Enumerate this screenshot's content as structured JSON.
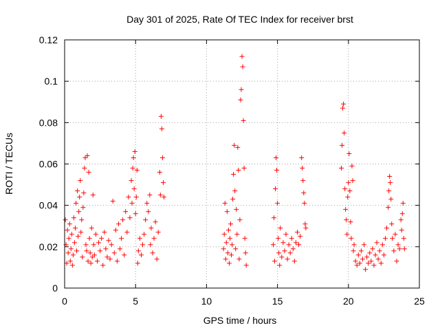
{
  "chart_data": {
    "type": "scatter",
    "title": "Day 301 of 2025, Rate Of TEC Index for receiver brst",
    "xlabel": "GPS time / hours",
    "ylabel": "ROTI / TECUs",
    "xlim": [
      0,
      25
    ],
    "ylim": [
      0,
      0.12
    ],
    "x_ticks": [
      0,
      5,
      10,
      15,
      20,
      25
    ],
    "x_tick_labels": [
      "0",
      "5",
      "10",
      "15",
      "20",
      "25"
    ],
    "y_ticks": [
      0,
      0.02,
      0.04,
      0.06,
      0.08,
      0.1,
      0.12
    ],
    "y_tick_labels": [
      "0",
      "0.02",
      "0.04",
      "0.06",
      "0.08",
      "0.1",
      "0.12"
    ],
    "grid": true,
    "marker": "+",
    "marker_color": "#ff0000",
    "series": [
      {
        "name": "ROTI",
        "points": [
          [
            0.05,
            0.033
          ],
          [
            0.1,
            0.021
          ],
          [
            0.15,
            0.012
          ],
          [
            0.2,
            0.028
          ],
          [
            0.25,
            0.017
          ],
          [
            0.3,
            0.024
          ],
          [
            0.35,
            0.031
          ],
          [
            0.4,
            0.013
          ],
          [
            0.45,
            0.019
          ],
          [
            0.5,
            0.026
          ],
          [
            0.55,
            0.011
          ],
          [
            0.6,
            0.016
          ],
          [
            0.65,
            0.034
          ],
          [
            0.7,
            0.022
          ],
          [
            0.75,
            0.029
          ],
          [
            0.8,
            0.041
          ],
          [
            0.85,
            0.018
          ],
          [
            0.9,
            0.047
          ],
          [
            0.95,
            0.025
          ],
          [
            1.0,
            0.037
          ],
          [
            1.05,
            0.044
          ],
          [
            1.1,
            0.052
          ],
          [
            1.15,
            0.027
          ],
          [
            1.2,
            0.033
          ],
          [
            1.25,
            0.015
          ],
          [
            1.3,
            0.039
          ],
          [
            1.35,
            0.046
          ],
          [
            1.4,
            0.058
          ],
          [
            1.45,
            0.063
          ],
          [
            1.5,
            0.021
          ],
          [
            1.55,
            0.018
          ],
          [
            1.6,
            0.064
          ],
          [
            1.65,
            0.013
          ],
          [
            1.7,
            0.056
          ],
          [
            1.75,
            0.024
          ],
          [
            1.8,
            0.017
          ],
          [
            1.85,
            0.012
          ],
          [
            1.9,
            0.029
          ],
          [
            1.95,
            0.015
          ],
          [
            2.0,
            0.045
          ],
          [
            2.05,
            0.021
          ],
          [
            2.1,
            0.016
          ],
          [
            2.2,
            0.026
          ],
          [
            2.3,
            0.013
          ],
          [
            2.4,
            0.022
          ],
          [
            2.5,
            0.018
          ],
          [
            2.6,
            0.024
          ],
          [
            2.7,
            0.011
          ],
          [
            2.8,
            0.027
          ],
          [
            2.9,
            0.019
          ],
          [
            3.0,
            0.015
          ],
          [
            3.1,
            0.023
          ],
          [
            3.2,
            0.014
          ],
          [
            3.3,
            0.021
          ],
          [
            3.4,
            0.042
          ],
          [
            3.5,
            0.017
          ],
          [
            3.6,
            0.028
          ],
          [
            3.7,
            0.013
          ],
          [
            3.8,
            0.031
          ],
          [
            3.9,
            0.019
          ],
          [
            4.0,
            0.024
          ],
          [
            4.1,
            0.033
          ],
          [
            4.2,
            0.016
          ],
          [
            4.3,
            0.037
          ],
          [
            4.4,
            0.027
          ],
          [
            4.5,
            0.044
          ],
          [
            4.6,
            0.034
          ],
          [
            4.7,
            0.052
          ],
          [
            4.75,
            0.041
          ],
          [
            4.8,
            0.058
          ],
          [
            4.85,
            0.063
          ],
          [
            4.9,
            0.048
          ],
          [
            4.95,
            0.066
          ],
          [
            5.0,
            0.036
          ],
          [
            5.05,
            0.044
          ],
          [
            5.1,
            0.057
          ],
          [
            5.15,
            0.012
          ],
          [
            5.2,
            0.018
          ],
          [
            5.3,
            0.024
          ],
          [
            5.4,
            0.016
          ],
          [
            5.5,
            0.021
          ],
          [
            5.6,
            0.026
          ],
          [
            5.7,
            0.033
          ],
          [
            5.8,
            0.041
          ],
          [
            5.9,
            0.037
          ],
          [
            6.0,
            0.045
          ],
          [
            6.05,
            0.021
          ],
          [
            6.1,
            0.029
          ],
          [
            6.2,
            0.017
          ],
          [
            6.3,
            0.024
          ],
          [
            6.4,
            0.032
          ],
          [
            6.5,
            0.014
          ],
          [
            6.6,
            0.027
          ],
          [
            6.7,
            0.056
          ],
          [
            6.75,
            0.045
          ],
          [
            6.8,
            0.083
          ],
          [
            6.85,
            0.077
          ],
          [
            6.9,
            0.063
          ],
          [
            6.95,
            0.051
          ],
          [
            7.0,
            0.044
          ],
          [
            11.2,
            0.019
          ],
          [
            11.25,
            0.026
          ],
          [
            11.3,
            0.041
          ],
          [
            11.35,
            0.014
          ],
          [
            11.4,
            0.022
          ],
          [
            11.45,
            0.037
          ],
          [
            11.5,
            0.017
          ],
          [
            11.55,
            0.028
          ],
          [
            11.6,
            0.012
          ],
          [
            11.65,
            0.024
          ],
          [
            11.7,
            0.031
          ],
          [
            11.75,
            0.016
          ],
          [
            11.8,
            0.021
          ],
          [
            11.85,
            0.043
          ],
          [
            11.9,
            0.055
          ],
          [
            11.95,
            0.069
          ],
          [
            12.0,
            0.047
          ],
          [
            12.05,
            0.019
          ],
          [
            12.1,
            0.038
          ],
          [
            12.15,
            0.026
          ],
          [
            12.2,
            0.068
          ],
          [
            12.25,
            0.057
          ],
          [
            12.3,
            0.014
          ],
          [
            12.35,
            0.033
          ],
          [
            12.4,
            0.091
          ],
          [
            12.45,
            0.096
          ],
          [
            12.5,
            0.112
          ],
          [
            12.55,
            0.107
          ],
          [
            12.6,
            0.081
          ],
          [
            12.65,
            0.058
          ],
          [
            12.7,
            0.024
          ],
          [
            12.75,
            0.017
          ],
          [
            12.8,
            0.011
          ],
          [
            14.7,
            0.021
          ],
          [
            14.75,
            0.034
          ],
          [
            14.8,
            0.013
          ],
          [
            14.85,
            0.048
          ],
          [
            14.9,
            0.063
          ],
          [
            14.95,
            0.057
          ],
          [
            15.0,
            0.041
          ],
          [
            15.05,
            0.024
          ],
          [
            15.1,
            0.017
          ],
          [
            15.15,
            0.011
          ],
          [
            15.2,
            0.029
          ],
          [
            15.3,
            0.015
          ],
          [
            15.4,
            0.022
          ],
          [
            15.5,
            0.018
          ],
          [
            15.6,
            0.026
          ],
          [
            15.7,
            0.014
          ],
          [
            15.8,
            0.021
          ],
          [
            15.9,
            0.017
          ],
          [
            16.0,
            0.024
          ],
          [
            16.1,
            0.019
          ],
          [
            16.2,
            0.013
          ],
          [
            16.3,
            0.022
          ],
          [
            16.4,
            0.027
          ],
          [
            16.5,
            0.021
          ],
          [
            16.6,
            0.025
          ],
          [
            16.7,
            0.063
          ],
          [
            16.75,
            0.058
          ],
          [
            16.8,
            0.052
          ],
          [
            16.85,
            0.046
          ],
          [
            16.9,
            0.041
          ],
          [
            16.95,
            0.031
          ],
          [
            17.0,
            0.029
          ],
          [
            19.5,
            0.058
          ],
          [
            19.55,
            0.069
          ],
          [
            19.6,
            0.087
          ],
          [
            19.65,
            0.089
          ],
          [
            19.7,
            0.075
          ],
          [
            19.75,
            0.048
          ],
          [
            19.8,
            0.038
          ],
          [
            19.85,
            0.033
          ],
          [
            19.9,
            0.026
          ],
          [
            19.95,
            0.044
          ],
          [
            20.0,
            0.051
          ],
          [
            20.05,
            0.065
          ],
          [
            20.1,
            0.047
          ],
          [
            20.15,
            0.032
          ],
          [
            20.2,
            0.024
          ],
          [
            20.25,
            0.059
          ],
          [
            20.3,
            0.052
          ],
          [
            20.35,
            0.018
          ],
          [
            20.4,
            0.021
          ],
          [
            20.5,
            0.013
          ],
          [
            20.6,
            0.011
          ],
          [
            20.7,
            0.016
          ],
          [
            20.8,
            0.012
          ],
          [
            20.9,
            0.018
          ],
          [
            21.0,
            0.014
          ],
          [
            21.1,
            0.021
          ],
          [
            21.2,
            0.009
          ],
          [
            21.3,
            0.015
          ],
          [
            21.4,
            0.012
          ],
          [
            21.5,
            0.017
          ],
          [
            21.6,
            0.013
          ],
          [
            21.7,
            0.019
          ],
          [
            21.8,
            0.011
          ],
          [
            21.9,
            0.016
          ],
          [
            22.0,
            0.022
          ],
          [
            22.1,
            0.014
          ],
          [
            22.2,
            0.018
          ],
          [
            22.3,
            0.012
          ],
          [
            22.4,
            0.021
          ],
          [
            22.5,
            0.016
          ],
          [
            22.6,
            0.024
          ],
          [
            22.7,
            0.029
          ],
          [
            22.8,
            0.039
          ],
          [
            22.85,
            0.047
          ],
          [
            22.9,
            0.054
          ],
          [
            22.95,
            0.051
          ],
          [
            23.0,
            0.043
          ],
          [
            23.05,
            0.031
          ],
          [
            23.1,
            0.024
          ],
          [
            23.2,
            0.018
          ],
          [
            23.3,
            0.026
          ],
          [
            23.4,
            0.013
          ],
          [
            23.5,
            0.021
          ],
          [
            23.6,
            0.019
          ],
          [
            23.7,
            0.033
          ],
          [
            23.75,
            0.028
          ],
          [
            23.8,
            0.036
          ],
          [
            23.85,
            0.041
          ],
          [
            23.9,
            0.024
          ],
          [
            23.95,
            0.019
          ]
        ]
      }
    ]
  }
}
